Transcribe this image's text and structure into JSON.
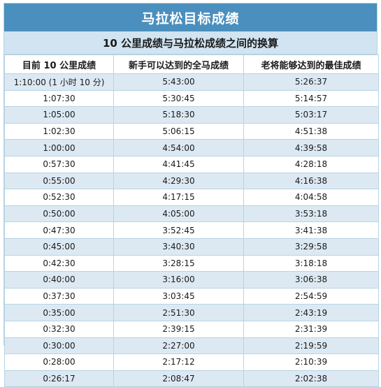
{
  "title": "马拉松目标成绩",
  "subtitle": "10 公里成绩与马拉松成绩之间的换算",
  "headers": [
    "目前 10 公里成绩",
    "新手可以达到的全马成绩",
    "老将能够达到的最佳成绩"
  ],
  "rows": [
    [
      "1:10:00 (1 小时 10 分)",
      "5:43:00",
      "5:26:37"
    ],
    [
      "1:07:30",
      "5:30:45",
      "5:14:57"
    ],
    [
      "1:05:00",
      "5:18:30",
      "5:03:17"
    ],
    [
      "1:02:30",
      "5:06:15",
      "4:51:38"
    ],
    [
      "1:00:00",
      "4:54:00",
      "4:39:58"
    ],
    [
      "0:57:30",
      "4:41:45",
      "4:28:18"
    ],
    [
      "0:55:00",
      "4:29:30",
      "4:16:38"
    ],
    [
      "0:52:30",
      "4:17:15",
      "4:04:58"
    ],
    [
      "0:50:00",
      "4:05:00",
      "3:53:18"
    ],
    [
      "0:47:30",
      "3:52:45",
      "3:41:38"
    ],
    [
      "0:45:00",
      "3:40:30",
      "3:29:58"
    ],
    [
      "0:42:30",
      "3:28:15",
      "3:18:18"
    ],
    [
      "0:40:00",
      "3:16:00",
      "3:06:38"
    ],
    [
      "0:37:30",
      "3:03:45",
      "2:54:59"
    ],
    [
      "0:35:00",
      "2:51:30",
      "2:43:19"
    ],
    [
      "0:32:30",
      "2:39:15",
      "2:31:39"
    ],
    [
      "0:30:00",
      "2:27:00",
      "2:19:59"
    ],
    [
      "0:28:00",
      "2:17:12",
      "2:10:39"
    ],
    [
      "0:26:17",
      "2:08:47",
      "2:02:38"
    ]
  ],
  "colors": {
    "title_bg": "#4a8fbd",
    "subtitle_bg": "#d0e4f1",
    "row_alt_bg": "#dce9f3",
    "border": "#b7d3e3"
  }
}
